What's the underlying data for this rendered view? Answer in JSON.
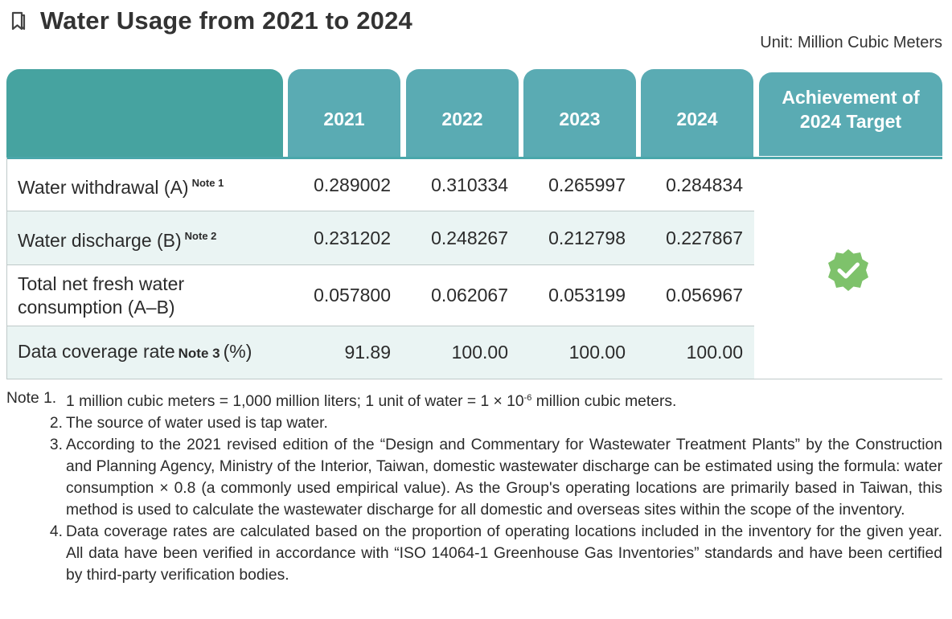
{
  "title": "Water Usage from 2021 to 2024",
  "unit": "Unit: Million Cubic Meters",
  "icons": {
    "title": "bookmark-icon",
    "achievement": "verified-check-icon"
  },
  "colors": {
    "header_dark": "#46a3a0",
    "header": "#5aabb3",
    "row_shade": "#eaf4f3",
    "check": "#7ec26b"
  },
  "table": {
    "years": [
      "2021",
      "2022",
      "2023",
      "2024"
    ],
    "achievement_header_line1": "Achievement of",
    "achievement_header_line2": "2024 Target",
    "rows": [
      {
        "label": "Water withdrawal (A)",
        "note": "Note 1",
        "values": [
          "0.289002",
          "0.310334",
          "0.265997",
          "0.284834"
        ]
      },
      {
        "label": "Water discharge (B)",
        "note": "Note 2",
        "values": [
          "0.231202",
          "0.248267",
          "0.212798",
          "0.227867"
        ]
      },
      {
        "label_line1": "Total net fresh water",
        "label_line2": "consumption (A–B)",
        "values": [
          "0.057800",
          "0.062067",
          "0.053199",
          "0.056967"
        ]
      },
      {
        "label": "Data coverage rate",
        "note": "Note 3",
        "label_suffix": "(%)",
        "values": [
          "91.89",
          "100.00",
          "100.00",
          "100.00"
        ]
      }
    ]
  },
  "notes": {
    "n1_num": "Note 1.",
    "n1_a": "1 million cubic meters = 1,000 million liters; 1 unit of water = 1 × 10",
    "n1_exp": "-6",
    "n1_b": " million cubic meters.",
    "n2_num": "2.",
    "n2": "The source of water used is tap water.",
    "n3_num": "3.",
    "n3": "According to the 2021 revised edition of the “Design and Commentary for Wastewater Treatment Plants” by the Construction and Planning Agency, Ministry of the Interior, Taiwan, domestic wastewater discharge can be estimated using the formula: water consumption × 0.8 (a commonly used empirical value). As the Group's operating locations are primarily based in Taiwan, this method is used to calculate the wastewater discharge for all domestic and overseas sites within the scope of the inventory.",
    "n4_num": "4.",
    "n4": "Data coverage rates are calculated based on the proportion of operating locations included in the inventory for the given year. All data have been verified in accordance with “ISO 14064-1 Greenhouse Gas Inventories” standards and have been certified by third-party verification bodies."
  }
}
